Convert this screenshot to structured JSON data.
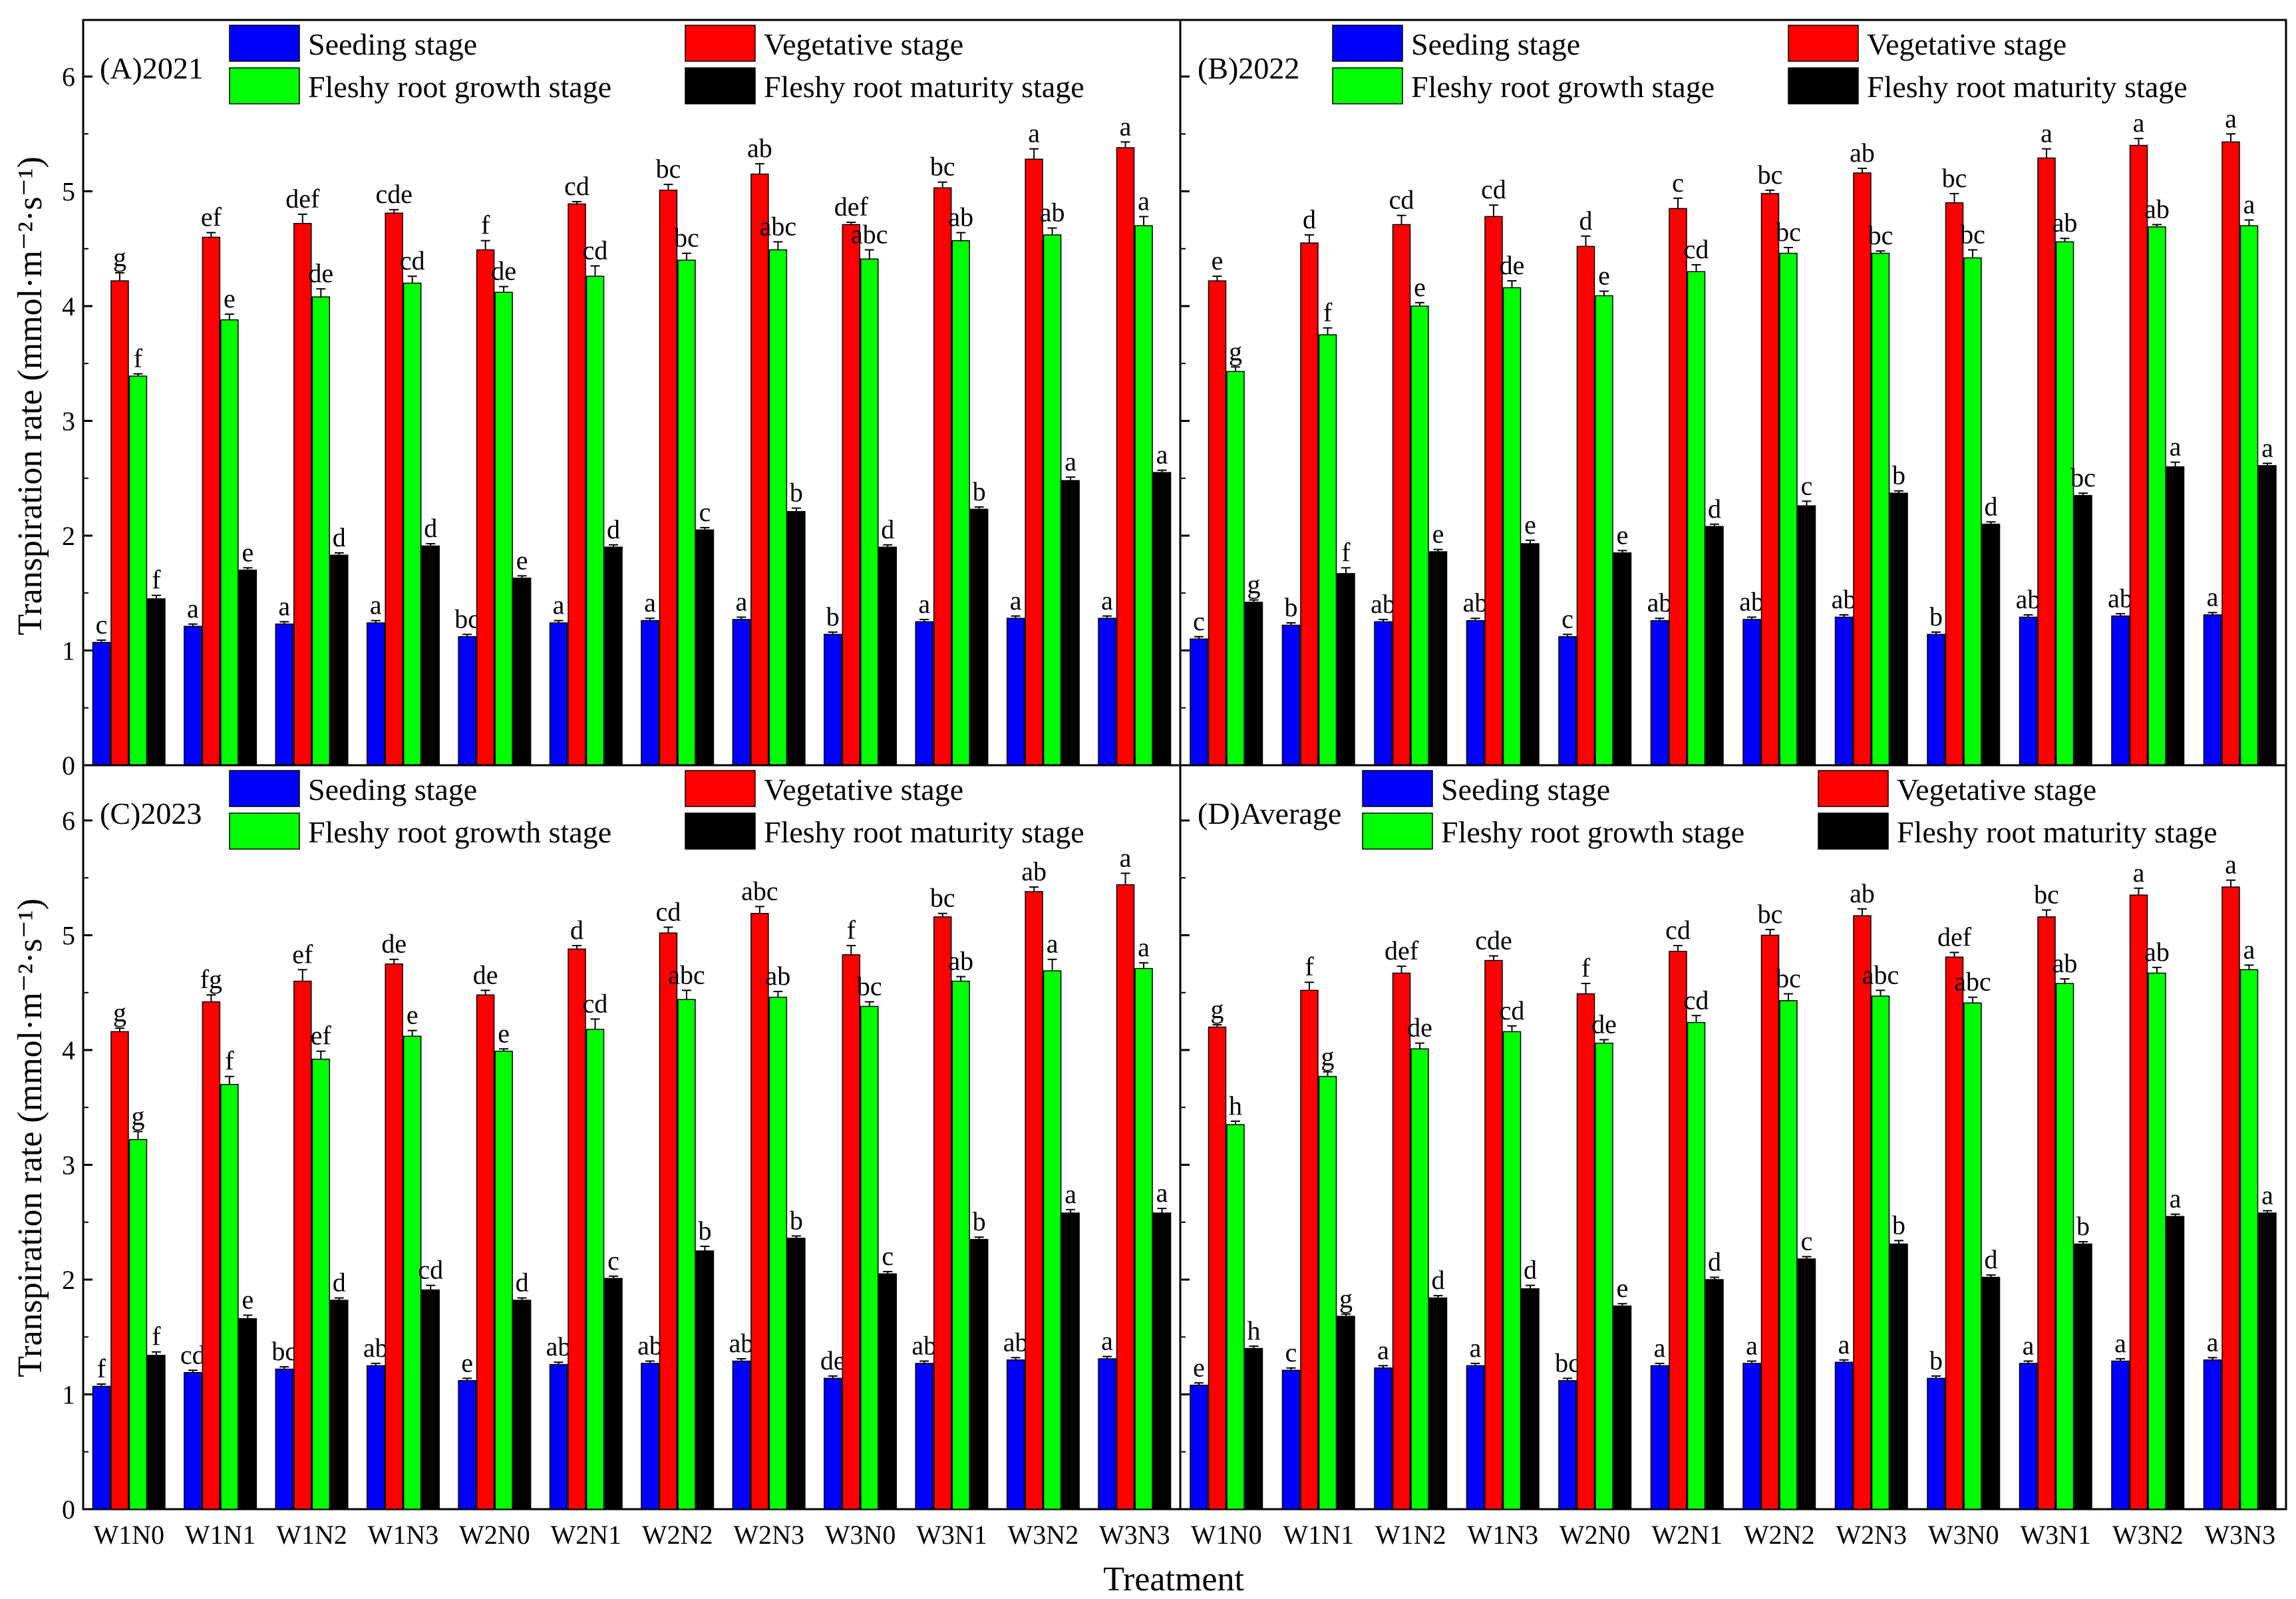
{
  "figure": {
    "xlabel": "Treatment",
    "ylabel": "Transpiration rate (mmol·m⁻²·s⁻¹)",
    "yticks": [
      "0",
      "1",
      "2",
      "3",
      "4",
      "5",
      "6"
    ],
    "legend": [
      {
        "label": "Seeding stage",
        "color": "#0000ff"
      },
      {
        "label": "Vegetative stage",
        "color": "#ff0000"
      },
      {
        "label": "Fleshy root growth stage",
        "color": "#00ff00"
      },
      {
        "label": "Fleshy root maturity stage",
        "color": "#000000"
      }
    ]
  },
  "chart_data": [
    {
      "type": "bar",
      "title": "(A)2021",
      "xlabel": "Treatment",
      "ylabel": "Transpiration rate (mmol·m⁻²·s⁻¹)",
      "ylim": [
        0,
        6.5
      ],
      "categories": [
        "W1N0",
        "W1N1",
        "W1N2",
        "W1N3",
        "W2N0",
        "W2N1",
        "W2N2",
        "W2N3",
        "W3N0",
        "W3N1",
        "W3N2",
        "W3N3"
      ],
      "series": [
        {
          "name": "Seeding stage",
          "color": "#0000ff",
          "values": [
            1.07,
            1.21,
            1.23,
            1.24,
            1.12,
            1.24,
            1.26,
            1.27,
            1.14,
            1.25,
            1.28,
            1.28
          ],
          "errors": [
            0.02,
            0.02,
            0.02,
            0.02,
            0.02,
            0.02,
            0.02,
            0.02,
            0.02,
            0.02,
            0.02,
            0.02
          ],
          "letters": [
            "c",
            "a",
            "a",
            "a",
            "bc",
            "a",
            "a",
            "a",
            "b",
            "a",
            "a",
            "a"
          ]
        },
        {
          "name": "Vegetative stage",
          "color": "#ff0000",
          "values": [
            4.22,
            4.6,
            4.72,
            4.81,
            4.49,
            4.89,
            5.01,
            5.15,
            4.71,
            5.03,
            5.28,
            5.38
          ],
          "errors": [
            0.07,
            0.04,
            0.08,
            0.03,
            0.08,
            0.02,
            0.05,
            0.09,
            0.02,
            0.05,
            0.09,
            0.05
          ],
          "letters": [
            "g",
            "ef",
            "def",
            "cde",
            "f",
            "cd",
            "bc",
            "ab",
            "def",
            "bc",
            "a",
            "a"
          ]
        },
        {
          "name": "Fleshy root growth stage",
          "color": "#00ff00",
          "values": [
            3.39,
            3.88,
            4.08,
            4.2,
            4.12,
            4.26,
            4.4,
            4.49,
            4.41,
            4.57,
            4.62,
            4.7
          ],
          "errors": [
            0.02,
            0.05,
            0.07,
            0.06,
            0.05,
            0.09,
            0.06,
            0.07,
            0.08,
            0.07,
            0.06,
            0.08
          ],
          "letters": [
            "f",
            "e",
            "de",
            "cd",
            "de",
            "cd",
            "bc",
            "abc",
            "abc",
            "ab",
            "ab",
            "a"
          ]
        },
        {
          "name": "Fleshy root maturity stage",
          "color": "#000000",
          "values": [
            1.45,
            1.7,
            1.83,
            1.91,
            1.63,
            1.9,
            2.05,
            2.21,
            1.9,
            2.23,
            2.48,
            2.55
          ],
          "errors": [
            0.03,
            0.02,
            0.02,
            0.02,
            0.02,
            0.02,
            0.02,
            0.03,
            0.02,
            0.02,
            0.03,
            0.02
          ],
          "letters": [
            "f",
            "e",
            "d",
            "d",
            "e",
            "d",
            "c",
            "b",
            "d",
            "b",
            "a",
            "a"
          ]
        }
      ]
    },
    {
      "type": "bar",
      "title": "(B)2022",
      "xlabel": "Treatment",
      "ylabel": "Transpiration rate (mmol·m⁻²·s⁻¹)",
      "ylim": [
        0,
        6.5
      ],
      "categories": [
        "W1N0",
        "W1N1",
        "W1N2",
        "W1N3",
        "W2N0",
        "W2N1",
        "W2N2",
        "W2N3",
        "W3N0",
        "W3N1",
        "W3N2",
        "W3N3"
      ],
      "series": [
        {
          "name": "Seeding stage",
          "color": "#0000ff",
          "values": [
            1.1,
            1.22,
            1.25,
            1.26,
            1.12,
            1.26,
            1.27,
            1.29,
            1.14,
            1.29,
            1.3,
            1.31
          ],
          "errors": [
            0.02,
            0.02,
            0.02,
            0.02,
            0.02,
            0.02,
            0.02,
            0.02,
            0.02,
            0.02,
            0.02,
            0.02
          ],
          "letters": [
            "c",
            "b",
            "ab",
            "ab",
            "c",
            "ab",
            "ab",
            "ab",
            "b",
            "ab",
            "ab",
            "a"
          ]
        },
        {
          "name": "Vegetative stage",
          "color": "#ff0000",
          "values": [
            4.22,
            4.55,
            4.71,
            4.78,
            4.52,
            4.85,
            4.98,
            5.16,
            4.9,
            5.29,
            5.4,
            5.43
          ],
          "errors": [
            0.04,
            0.07,
            0.08,
            0.1,
            0.09,
            0.09,
            0.03,
            0.04,
            0.08,
            0.08,
            0.06,
            0.07
          ],
          "letters": [
            "e",
            "d",
            "cd",
            "cd",
            "d",
            "c",
            "bc",
            "ab",
            "bc",
            "a",
            "a",
            "a"
          ]
        },
        {
          "name": "Fleshy root growth stage",
          "color": "#00ff00",
          "values": [
            3.43,
            3.75,
            4.0,
            4.16,
            4.09,
            4.3,
            4.46,
            4.46,
            4.42,
            4.56,
            4.69,
            4.7
          ],
          "errors": [
            0.04,
            0.06,
            0.03,
            0.06,
            0.04,
            0.06,
            0.05,
            0.02,
            0.07,
            0.03,
            0.02,
            0.05
          ],
          "letters": [
            "g",
            "f",
            "e",
            "de",
            "e",
            "cd",
            "bc",
            "bc",
            "bc",
            "ab",
            "ab",
            "a"
          ]
        },
        {
          "name": "Fleshy root maturity stage",
          "color": "#000000",
          "values": [
            1.42,
            1.67,
            1.86,
            1.93,
            1.85,
            2.08,
            2.26,
            2.37,
            2.1,
            2.35,
            2.6,
            2.61
          ],
          "errors": [
            0.02,
            0.05,
            0.02,
            0.03,
            0.02,
            0.02,
            0.04,
            0.02,
            0.02,
            0.02,
            0.04,
            0.02
          ],
          "letters": [
            "g",
            "f",
            "e",
            "e",
            "e",
            "d",
            "c",
            "b",
            "d",
            "bc",
            "a",
            "a"
          ]
        }
      ]
    },
    {
      "type": "bar",
      "title": "(C)2023",
      "xlabel": "Treatment",
      "ylabel": "Transpiration rate (mmol·m⁻²·s⁻¹)",
      "ylim": [
        0,
        6.5
      ],
      "categories": [
        "W1N0",
        "W1N1",
        "W1N2",
        "W1N3",
        "W2N0",
        "W2N1",
        "W2N2",
        "W2N3",
        "W3N0",
        "W3N1",
        "W3N2",
        "W3N3"
      ],
      "series": [
        {
          "name": "Seeding stage",
          "color": "#0000ff",
          "values": [
            1.07,
            1.19,
            1.22,
            1.25,
            1.12,
            1.26,
            1.27,
            1.29,
            1.14,
            1.27,
            1.3,
            1.31
          ],
          "errors": [
            0.02,
            0.02,
            0.02,
            0.02,
            0.02,
            0.02,
            0.02,
            0.02,
            0.02,
            0.02,
            0.02,
            0.02
          ],
          "letters": [
            "f",
            "cd",
            "bc",
            "ab",
            "e",
            "ab",
            "ab",
            "ab",
            "de",
            "ab",
            "ab",
            "a"
          ]
        },
        {
          "name": "Vegetative stage",
          "color": "#ff0000",
          "values": [
            4.16,
            4.42,
            4.6,
            4.75,
            4.48,
            4.88,
            5.02,
            5.19,
            4.83,
            5.16,
            5.38,
            5.44
          ],
          "errors": [
            0.03,
            0.06,
            0.1,
            0.04,
            0.04,
            0.03,
            0.05,
            0.06,
            0.08,
            0.03,
            0.04,
            0.1
          ],
          "letters": [
            "g",
            "fg",
            "ef",
            "de",
            "de",
            "d",
            "cd",
            "abc",
            "f",
            "bc",
            "ab",
            "a"
          ]
        },
        {
          "name": "Fleshy root growth stage",
          "color": "#00ff00",
          "values": [
            3.22,
            3.7,
            3.92,
            4.12,
            3.99,
            4.18,
            4.44,
            4.46,
            4.38,
            4.6,
            4.69,
            4.71
          ],
          "errors": [
            0.07,
            0.07,
            0.07,
            0.05,
            0.02,
            0.09,
            0.08,
            0.05,
            0.04,
            0.04,
            0.1,
            0.05
          ],
          "letters": [
            "g",
            "f",
            "ef",
            "e",
            "e",
            "cd",
            "abc",
            "ab",
            "bc",
            "ab",
            "a",
            "a"
          ]
        },
        {
          "name": "Fleshy root maturity stage",
          "color": "#000000",
          "values": [
            1.34,
            1.66,
            1.82,
            1.91,
            1.82,
            2.01,
            2.25,
            2.36,
            2.05,
            2.35,
            2.58,
            2.58
          ],
          "errors": [
            0.03,
            0.03,
            0.02,
            0.04,
            0.02,
            0.02,
            0.04,
            0.02,
            0.02,
            0.02,
            0.03,
            0.04
          ],
          "letters": [
            "f",
            "e",
            "d",
            "cd",
            "d",
            "c",
            "b",
            "b",
            "c",
            "b",
            "a",
            "a"
          ]
        }
      ]
    },
    {
      "type": "bar",
      "title": "(D)Average",
      "xlabel": "Treatment",
      "ylabel": "Transpiration rate (mmol·m⁻²·s⁻¹)",
      "ylim": [
        0,
        6.5
      ],
      "categories": [
        "W1N0",
        "W1N1",
        "W1N2",
        "W1N3",
        "W2N0",
        "W2N1",
        "W2N2",
        "W2N3",
        "W3N0",
        "W3N1",
        "W3N2",
        "W3N3"
      ],
      "series": [
        {
          "name": "Seeding stage",
          "color": "#0000ff",
          "values": [
            1.08,
            1.21,
            1.23,
            1.25,
            1.12,
            1.25,
            1.27,
            1.28,
            1.14,
            1.27,
            1.29,
            1.3
          ],
          "errors": [
            0.02,
            0.02,
            0.02,
            0.02,
            0.02,
            0.02,
            0.02,
            0.02,
            0.02,
            0.02,
            0.02,
            0.02
          ],
          "letters": [
            "e",
            "c",
            "a",
            "a",
            "bc",
            "a",
            "a",
            "a",
            "b",
            "a",
            "a",
            "a"
          ]
        },
        {
          "name": "Vegetative stage",
          "color": "#ff0000",
          "values": [
            4.2,
            4.52,
            4.67,
            4.78,
            4.49,
            4.86,
            5.0,
            5.17,
            4.81,
            5.16,
            5.35,
            5.42
          ],
          "errors": [
            0.02,
            0.07,
            0.06,
            0.04,
            0.09,
            0.05,
            0.05,
            0.06,
            0.04,
            0.06,
            0.06,
            0.06
          ],
          "letters": [
            "g",
            "f",
            "def",
            "cde",
            "f",
            "cd",
            "bc",
            "ab",
            "def",
            "bc",
            "a",
            "a"
          ]
        },
        {
          "name": "Fleshy root growth stage",
          "color": "#00ff00",
          "values": [
            3.35,
            3.77,
            4.01,
            4.16,
            4.06,
            4.24,
            4.43,
            4.47,
            4.41,
            4.58,
            4.67,
            4.7
          ],
          "errors": [
            0.03,
            0.04,
            0.05,
            0.05,
            0.03,
            0.06,
            0.06,
            0.05,
            0.05,
            0.04,
            0.05,
            0.04
          ],
          "letters": [
            "h",
            "g",
            "de",
            "cd",
            "de",
            "cd",
            "bc",
            "abc",
            "abc",
            "ab",
            "ab",
            "a"
          ]
        },
        {
          "name": "Fleshy root maturity stage",
          "color": "#000000",
          "values": [
            1.4,
            1.68,
            1.84,
            1.92,
            1.77,
            2.0,
            2.18,
            2.31,
            2.02,
            2.31,
            2.55,
            2.58
          ],
          "errors": [
            0.02,
            0.02,
            0.02,
            0.03,
            0.02,
            0.02,
            0.02,
            0.03,
            0.02,
            0.02,
            0.02,
            0.02
          ],
          "letters": [
            "h",
            "g",
            "d",
            "d",
            "e",
            "d",
            "c",
            "b",
            "d",
            "b",
            "a",
            "a"
          ]
        }
      ]
    }
  ]
}
